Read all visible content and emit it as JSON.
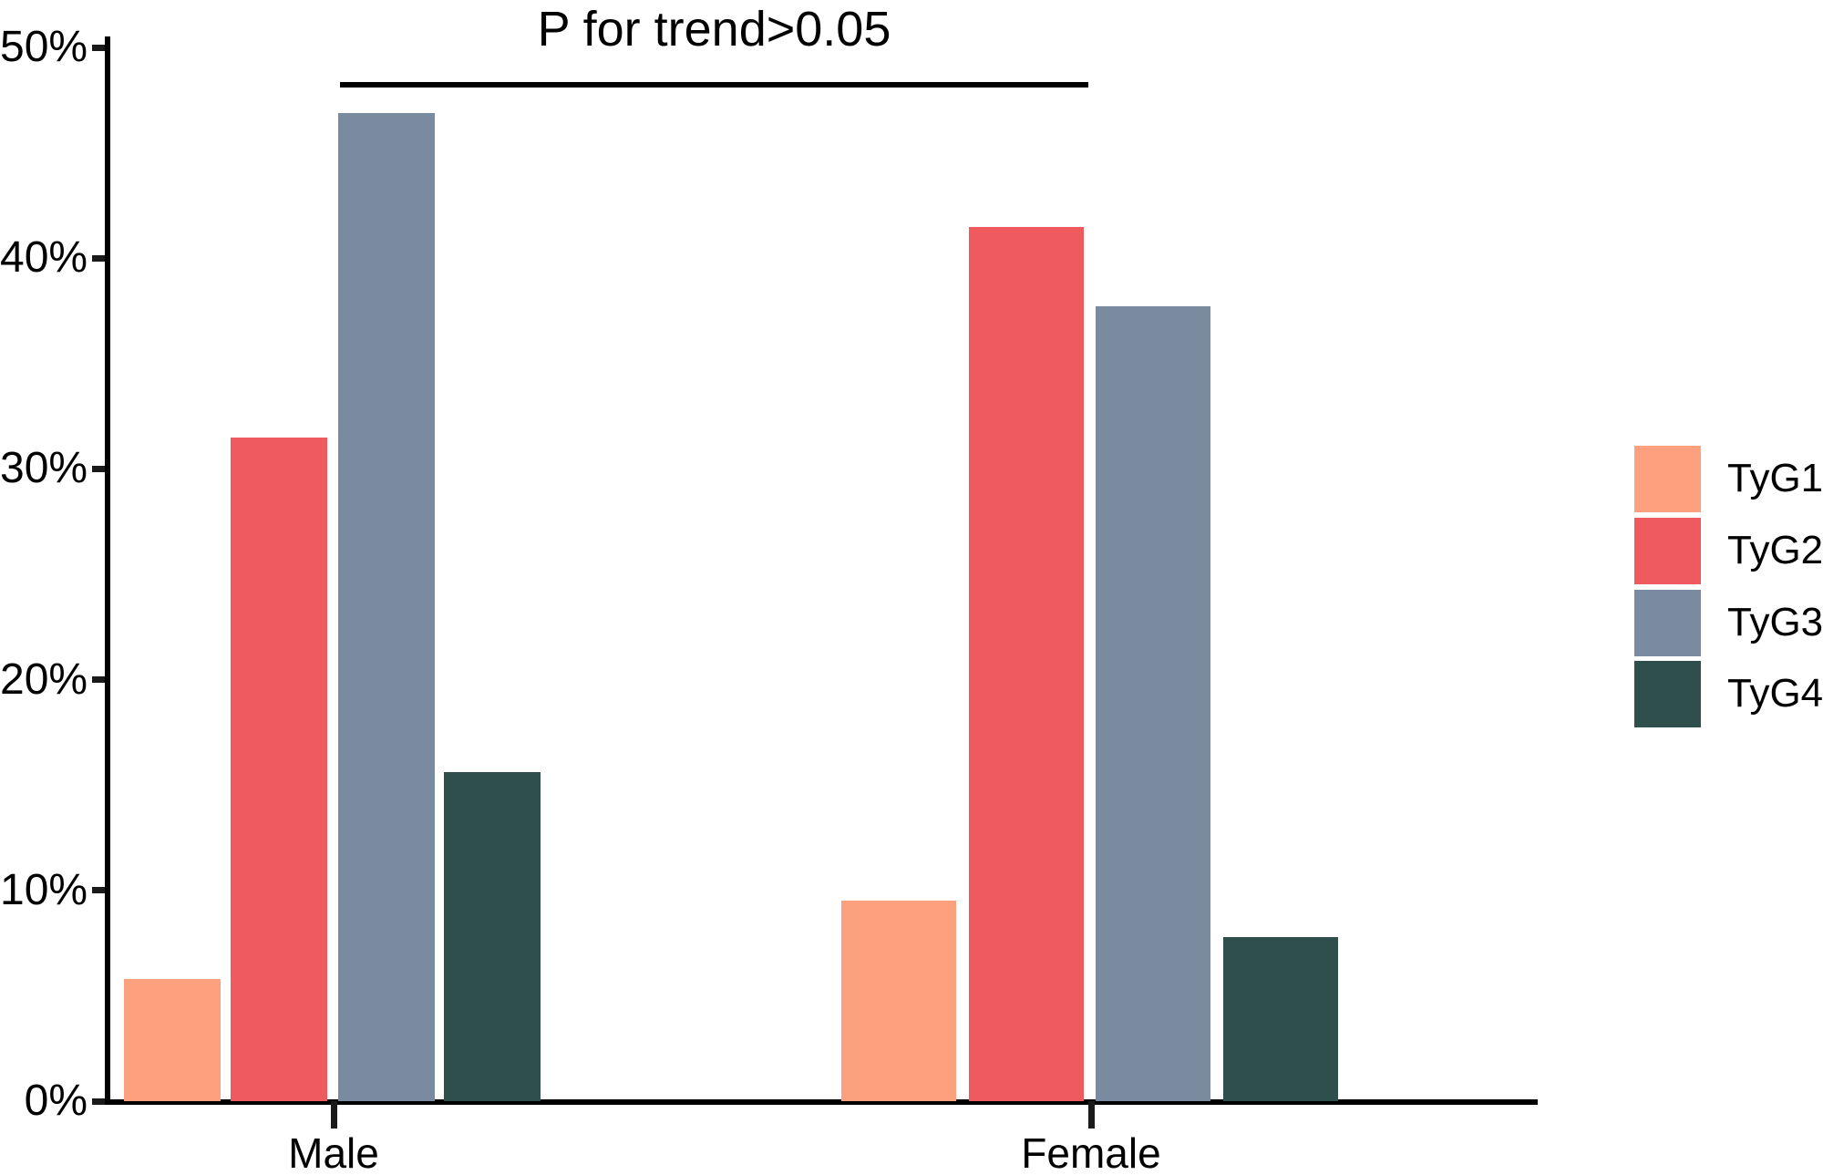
{
  "chart_data": {
    "type": "bar",
    "title": "P for trend>0.05",
    "categories": [
      "Male",
      "Female"
    ],
    "series": [
      {
        "name": "TyG1",
        "color": "#FCA07D",
        "values": [
          5.8,
          9.5
        ]
      },
      {
        "name": "TyG2",
        "color": "#EE5A5D",
        "values": [
          31.5,
          41.5
        ]
      },
      {
        "name": "TyG3",
        "color": "#7B8B9F",
        "values": [
          46.9,
          37.7
        ]
      },
      {
        "name": "TyG4",
        "color": "#2F4F4D",
        "values": [
          15.6,
          7.8
        ]
      }
    ],
    "xlabel": "",
    "ylabel": "",
    "ylim": [
      0,
      50
    ],
    "ytick_values": [
      0,
      10,
      20,
      30,
      40,
      50
    ],
    "ytick_labels": [
      "0%",
      "10%",
      "20%",
      "30%",
      "40%",
      "50%"
    ],
    "grid": false,
    "legend": {
      "position": "right",
      "entries": [
        "TyG1",
        "TyG2",
        "TyG3",
        "TyG4"
      ]
    },
    "annotation": {
      "text": "P for trend>0.05",
      "bracket_from": "Male TyG3",
      "bracket_to": "Female TyG2"
    }
  }
}
